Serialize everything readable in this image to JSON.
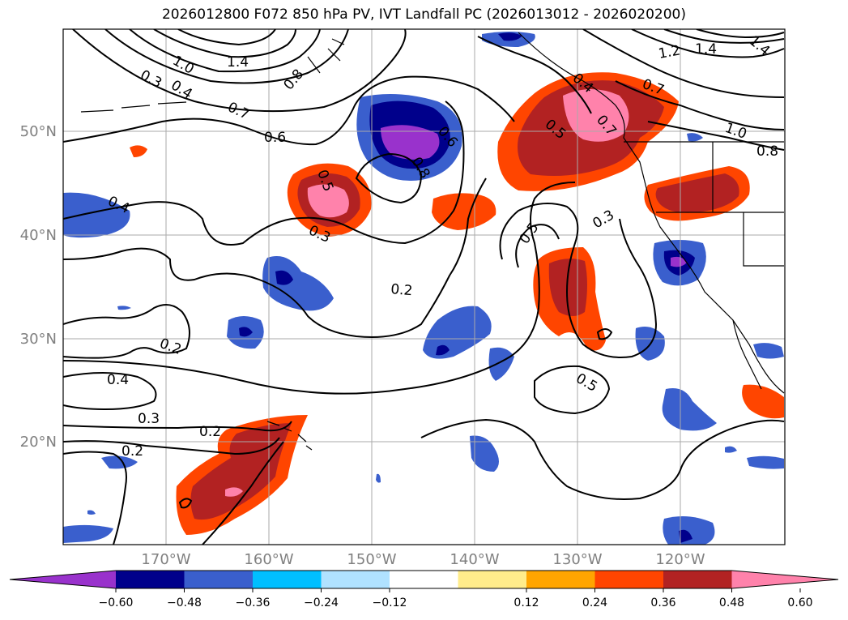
{
  "title": "2026012800 F072 850 hPa PV, IVT Landfall PC (2026013012 - 2026020200)",
  "lat_labels": [
    "50°N",
    "40°N",
    "30°N",
    "20°N"
  ],
  "lon_labels": [
    "170°W",
    "160°W",
    "150°W",
    "140°W",
    "130°W",
    "120°W"
  ],
  "contour_labels": [
    "1.0",
    "1.4",
    "0.3",
    "0.4",
    "0.7",
    "0.8",
    "0.6",
    "0.5",
    "0.8",
    "0.6",
    "0.3",
    "0.4",
    "0.2",
    "0.2",
    "0.4",
    "0.3",
    "0.2",
    "0.2",
    "0.5",
    "0.3",
    "0.5",
    "1.2",
    "1.4",
    "0.7",
    "1.0",
    "0.8",
    "1.4",
    "0.5",
    "0.4",
    "0.7"
  ],
  "colorbar": {
    "ticks": [
      "−0.60",
      "−0.48",
      "−0.36",
      "−0.24",
      "−0.12",
      "0.12",
      "0.24",
      "0.36",
      "0.48",
      "0.60"
    ],
    "colors": [
      "#9932cc",
      "#00008b",
      "#3a5fcd",
      "#00bfff",
      "#b0e2ff",
      "#ffffff",
      "#ffec8b",
      "#ffa500",
      "#ff4500",
      "#b22222",
      "#ff82ab",
      "#ff82ab"
    ]
  },
  "colors": {
    "purple": "#9932cc",
    "navy": "#00008b",
    "royal": "#3a5fcd",
    "sky": "#00bfff",
    "pale_blue": "#b0e2ff",
    "yellow": "#ffec8b",
    "orange": "#ffa500",
    "red_orange": "#ff4500",
    "firebrick": "#b22222",
    "pink": "#ff82ab"
  }
}
